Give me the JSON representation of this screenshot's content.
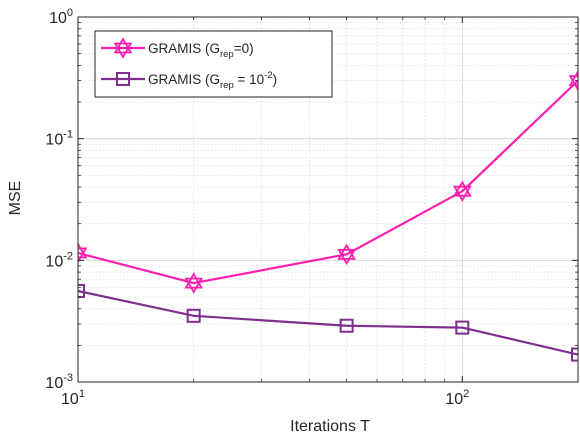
{
  "chart_data": {
    "type": "line",
    "xlabel": "Iterations T",
    "ylabel": "MSE",
    "xscale": "log",
    "yscale": "log",
    "xlim": [
      10,
      200
    ],
    "ylim": [
      0.001,
      1
    ],
    "grid": true,
    "legend_position": "top-left",
    "x_ticks": [
      {
        "value": 10,
        "base": "10",
        "exp": "1"
      },
      {
        "value": 100,
        "base": "10",
        "exp": "2"
      }
    ],
    "y_ticks": [
      {
        "value": 0.001,
        "base": "10",
        "exp": "-3"
      },
      {
        "value": 0.01,
        "base": "10",
        "exp": "-2"
      },
      {
        "value": 0.1,
        "base": "10",
        "exp": "-1"
      },
      {
        "value": 1,
        "base": "10",
        "exp": "0"
      }
    ],
    "series": [
      {
        "name_main": "GRAMIS (G",
        "name_sub": "rep",
        "name_rest": "=0)",
        "name_sup": "",
        "name_close": "",
        "color": "#ff1fae",
        "marker": "hexagram",
        "x": [
          10,
          20,
          50,
          100,
          200
        ],
        "y": [
          0.0115,
          0.0065,
          0.0112,
          0.037,
          0.3
        ]
      },
      {
        "name_main": "GRAMIS (G",
        "name_sub": "rep",
        "name_rest": " = 10",
        "name_sup": "-2",
        "name_close": ")",
        "color": "#7e2f8e",
        "marker": "square",
        "x": [
          10,
          20,
          50,
          100,
          200
        ],
        "y": [
          0.0056,
          0.0035,
          0.0029,
          0.0028,
          0.00168
        ]
      }
    ]
  }
}
